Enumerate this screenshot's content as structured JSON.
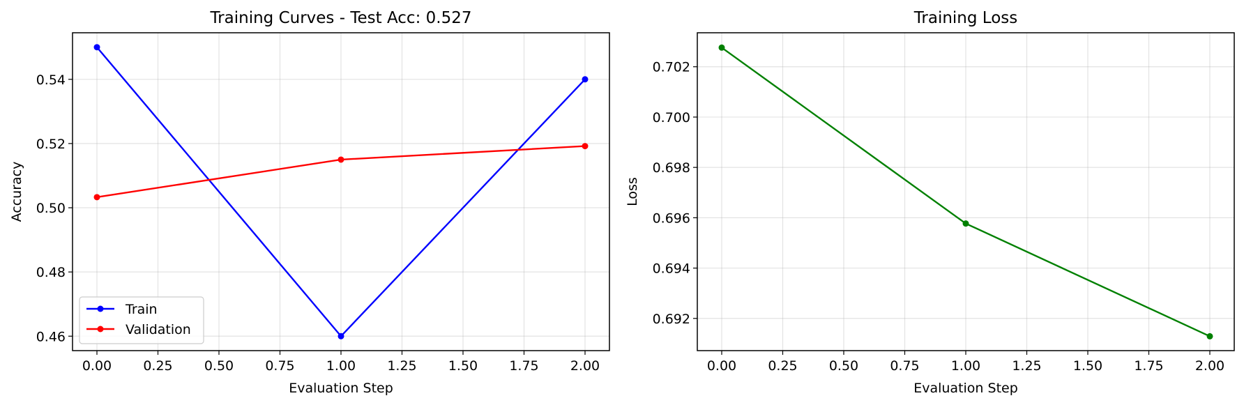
{
  "chart_data": [
    {
      "type": "line",
      "title": "Training Curves - Test Acc: 0.527",
      "xlabel": "Evaluation Step",
      "ylabel": "Accuracy",
      "x": [
        0,
        1,
        2
      ],
      "xlim": [
        -0.1,
        2.1
      ],
      "ylim": [
        0.4555,
        0.5545
      ],
      "xticks": [
        0,
        0.25,
        0.5,
        0.75,
        1,
        1.25,
        1.5,
        1.75,
        2
      ],
      "xtick_labels": [
        "0.00",
        "0.25",
        "0.50",
        "0.75",
        "1.00",
        "1.25",
        "1.50",
        "1.75",
        "2.00"
      ],
      "yticks": [
        0.46,
        0.48,
        0.5,
        0.52,
        0.54
      ],
      "ytick_labels": [
        "0.46",
        "0.48",
        "0.50",
        "0.52",
        "0.54"
      ],
      "grid": true,
      "legend_position": "lower-left",
      "series": [
        {
          "name": "Train",
          "color": "#0000ff",
          "values": [
            0.55,
            0.46,
            0.54
          ]
        },
        {
          "name": "Validation",
          "color": "#ff0000",
          "values": [
            0.5033,
            0.515,
            0.5192
          ]
        }
      ]
    },
    {
      "type": "line",
      "title": "Training Loss",
      "xlabel": "Evaluation Step",
      "ylabel": "Loss",
      "x": [
        0,
        1,
        2
      ],
      "xlim": [
        -0.1,
        2.1
      ],
      "ylim": [
        0.69072,
        0.70335
      ],
      "xticks": [
        0,
        0.25,
        0.5,
        0.75,
        1,
        1.25,
        1.5,
        1.75,
        2
      ],
      "xtick_labels": [
        "0.00",
        "0.25",
        "0.50",
        "0.75",
        "1.00",
        "1.25",
        "1.50",
        "1.75",
        "2.00"
      ],
      "yticks": [
        0.692,
        0.694,
        0.696,
        0.698,
        0.7,
        0.702
      ],
      "ytick_labels": [
        "0.692",
        "0.694",
        "0.696",
        "0.698",
        "0.700",
        "0.702"
      ],
      "grid": true,
      "series": [
        {
          "color": "#008000",
          "values": [
            0.70276,
            0.69577,
            0.69129
          ]
        }
      ]
    }
  ]
}
